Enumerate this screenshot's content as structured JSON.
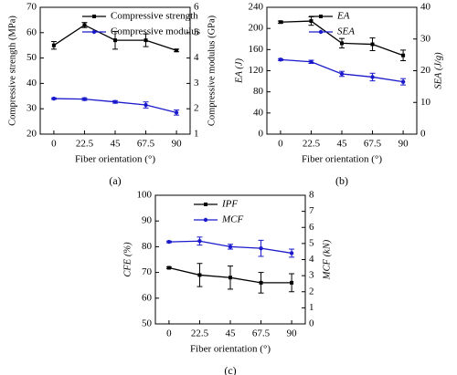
{
  "chart_data": [
    {
      "type": "line",
      "caption": "(a)",
      "x_label": "Fiber orientation (°)",
      "y_label": "Compressive strength (MPa)",
      "y2_label": "Compressive modulus (GPa)",
      "x": [
        0,
        22.5,
        45,
        67.5,
        90
      ],
      "xlim": [
        -10,
        100
      ],
      "xticks": [
        0,
        22.5,
        45,
        67.5,
        90
      ],
      "ylim": [
        20,
        70
      ],
      "yticks": [
        20,
        30,
        40,
        50,
        60,
        70
      ],
      "y2lim": [
        1,
        6
      ],
      "y2ticks": [
        1,
        2,
        3,
        4,
        5,
        6
      ],
      "legend": "upper right",
      "series": [
        {
          "name": "Compressive strength",
          "color": "#000000",
          "values": [
            55,
            63,
            57,
            57,
            53
          ],
          "errors": [
            1.5,
            1,
            3.5,
            2.5,
            0.5
          ]
        },
        {
          "name": "Compressive modulus",
          "color": "#1a1acc",
          "axis": "y2",
          "values": [
            2.4,
            2.38,
            2.27,
            2.15,
            1.85
          ],
          "errors": [
            0.03,
            0.05,
            0.05,
            0.12,
            0.1
          ]
        }
      ]
    },
    {
      "type": "line",
      "caption": "(b)",
      "x_label": "Fiber orientation (°)",
      "y_label": "EA (J)",
      "y2_label": "SEA (J/g)",
      "x": [
        0,
        22.5,
        45,
        67.5,
        90
      ],
      "xlim": [
        -10,
        100
      ],
      "xticks": [
        0,
        22.5,
        45,
        67.5,
        90
      ],
      "ylim": [
        0,
        240
      ],
      "yticks": [
        0,
        40,
        80,
        120,
        160,
        200,
        240
      ],
      "y2lim": [
        0,
        40
      ],
      "y2ticks": [
        0,
        10,
        20,
        30,
        40
      ],
      "legend": "upper right",
      "series": [
        {
          "name": "EA",
          "color": "#000000",
          "values": [
            212,
            214,
            172,
            170,
            149
          ],
          "errors": [
            2,
            8,
            9,
            12,
            10
          ]
        },
        {
          "name": "SEA",
          "color": "#1a1acc",
          "axis": "y2",
          "values": [
            23.5,
            22.8,
            19,
            18,
            16.5
          ],
          "errors": [
            0.3,
            0.5,
            0.8,
            1.2,
            1
          ]
        }
      ]
    },
    {
      "type": "line",
      "caption": "(c)",
      "x_label": "Fiber orientation (°)",
      "y_label": "CFE (%)",
      "y2_label": "MCF (kN)",
      "x": [
        0,
        22.5,
        45,
        67.5,
        90
      ],
      "xlim": [
        -10,
        100
      ],
      "xticks": [
        0,
        22.5,
        45,
        67.5,
        90
      ],
      "ylim": [
        50,
        100
      ],
      "yticks": [
        50,
        60,
        70,
        80,
        90,
        100
      ],
      "y2lim": [
        0,
        8
      ],
      "y2ticks": [
        0,
        1,
        2,
        3,
        4,
        5,
        6,
        7,
        8
      ],
      "legend": "upper center",
      "series": [
        {
          "name": "IPF",
          "color": "#000000",
          "values": [
            71.8,
            69,
            68,
            66,
            66
          ],
          "errors": [
            0.3,
            4.5,
            4.5,
            4,
            3.5
          ]
        },
        {
          "name": "MCF",
          "color": "#1a1acc",
          "axis": "y2",
          "values": [
            5.1,
            5.15,
            4.8,
            4.7,
            4.4
          ],
          "errors": [
            0.05,
            0.25,
            0.15,
            0.5,
            0.25
          ]
        }
      ]
    }
  ]
}
